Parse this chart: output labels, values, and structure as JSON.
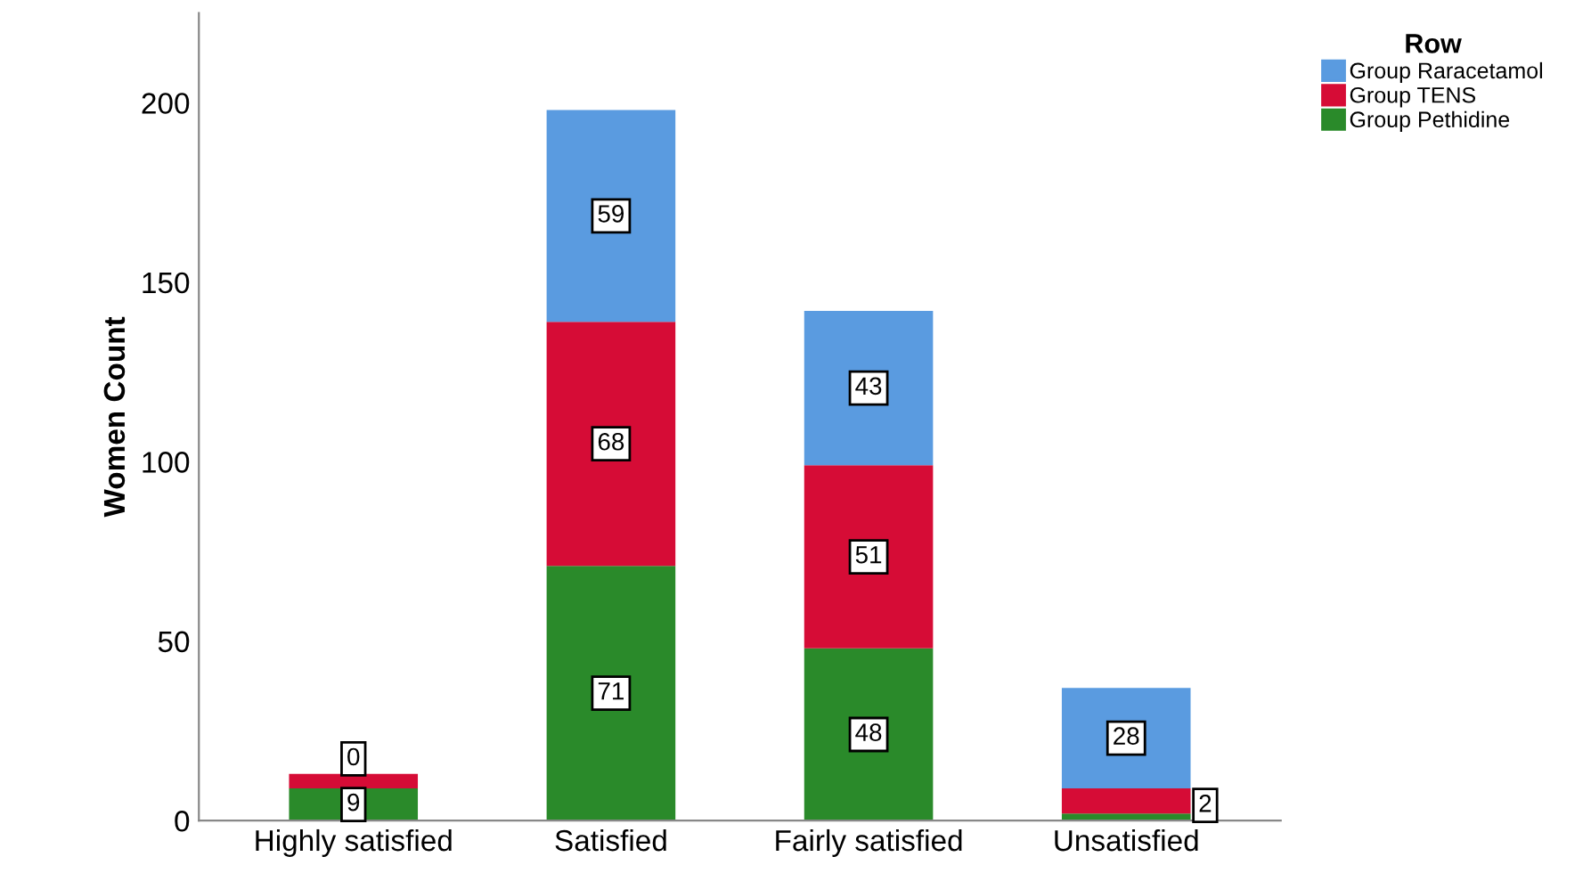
{
  "chart_data": {
    "type": "bar",
    "stacked": true,
    "ylabel": "Women Count",
    "legend_title": "Row",
    "legend": "top right",
    "categories": [
      "Highly satisfied",
      "Satisfied",
      "Fairly satisfied",
      "Unsatisfied"
    ],
    "series": [
      {
        "name": "Group Pethidine",
        "color": "#2a8a2a",
        "values": [
          9,
          71,
          48,
          2
        ],
        "value_labels": [
          "9",
          "71",
          "48",
          "2"
        ]
      },
      {
        "name": "Group TENS",
        "color": "#d60c36",
        "values": [
          4,
          68,
          51,
          7
        ],
        "value_labels": [
          null,
          "68",
          "51",
          null
        ]
      },
      {
        "name": "Group Raracetamol",
        "color": "#5a9be0",
        "values": [
          0,
          59,
          43,
          28
        ],
        "value_labels": [
          "0",
          "59",
          "43",
          "28"
        ]
      }
    ],
    "ylim": [
      0,
      225
    ],
    "yticks": [
      0,
      50,
      100,
      150,
      200
    ],
    "grid": false
  }
}
